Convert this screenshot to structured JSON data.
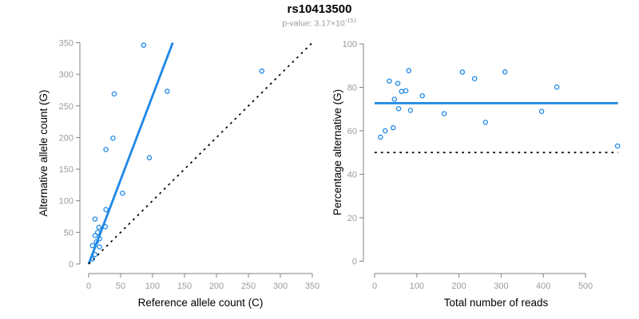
{
  "header": {
    "title": "rs10413500",
    "pvalue_prefix": "p-value: 3.17×10",
    "pvalue_exponent": "-151"
  },
  "colors": {
    "accent_blue": "#1E87E6",
    "reference_black": "#000000",
    "axis_gray": "#808080",
    "tick_label_gray": "#9B9B9B",
    "subtitle_gray": "#9B9B9B",
    "background": "#FFFFFF"
  },
  "chart_data": [
    {
      "id": "allele-counts",
      "type": "scatter",
      "title": "rs10413500",
      "subtitle": "p-value: 3.17×10-151",
      "xlabel": "Reference allele count (C)",
      "ylabel": "Alternative allele count (G)",
      "xlim": [
        0,
        350
      ],
      "ylim": [
        0,
        350
      ],
      "xticks": [
        0,
        50,
        100,
        150,
        200,
        250,
        300,
        350
      ],
      "yticks": [
        0,
        50,
        100,
        150,
        200,
        250,
        300,
        350
      ],
      "grid": false,
      "legend": "none",
      "points": [
        [
          6,
          8
        ],
        [
          10,
          15
        ],
        [
          6,
          29
        ],
        [
          17,
          27
        ],
        [
          12,
          35
        ],
        [
          10,
          45
        ],
        [
          17,
          40
        ],
        [
          14,
          50
        ],
        [
          16,
          58
        ],
        [
          10,
          71
        ],
        [
          26,
          59
        ],
        [
          27,
          86
        ],
        [
          53,
          112
        ],
        [
          27,
          181
        ],
        [
          38,
          199
        ],
        [
          95,
          168
        ],
        [
          40,
          269
        ],
        [
          123,
          273
        ],
        [
          86,
          346
        ],
        [
          271,
          305
        ]
      ],
      "lines": [
        {
          "name": "fit-line",
          "slope": 2.66,
          "intercept": 0,
          "style": "solid",
          "color": "#1E87E6"
        },
        {
          "name": "identity-line",
          "slope": 1,
          "intercept": 0,
          "style": "dotted",
          "color": "#000000"
        }
      ]
    },
    {
      "id": "percentage",
      "type": "scatter",
      "xlabel": "Total number of reads",
      "ylabel": "Percentage alternative (G)",
      "xlim": [
        0,
        500
      ],
      "ylim": [
        0,
        100
      ],
      "xticks": [
        0,
        100,
        200,
        300,
        400,
        500
      ],
      "yticks": [
        0,
        20,
        40,
        60,
        80,
        100
      ],
      "grid": false,
      "legend": "none",
      "points": [
        [
          14,
          57.1
        ],
        [
          25,
          60.0
        ],
        [
          35,
          82.9
        ],
        [
          44,
          61.4
        ],
        [
          47,
          74.5
        ],
        [
          55,
          81.8
        ],
        [
          57,
          70.2
        ],
        [
          64,
          78.1
        ],
        [
          74,
          78.4
        ],
        [
          81,
          87.7
        ],
        [
          85,
          69.4
        ],
        [
          113,
          76.1
        ],
        [
          165,
          67.9
        ],
        [
          208,
          87.0
        ],
        [
          237,
          84.0
        ],
        [
          263,
          63.9
        ],
        [
          309,
          87.1
        ],
        [
          396,
          68.9
        ],
        [
          432,
          80.1
        ],
        [
          576,
          53.0
        ]
      ],
      "lines": [
        {
          "name": "mean-line",
          "y": 72.7,
          "xspan": [
            0,
            577
          ],
          "style": "solid",
          "color": "#1E87E6"
        },
        {
          "name": "reference-line",
          "y": 50,
          "xspan": [
            0,
            577
          ],
          "style": "dotted",
          "color": "#000000"
        }
      ]
    }
  ]
}
